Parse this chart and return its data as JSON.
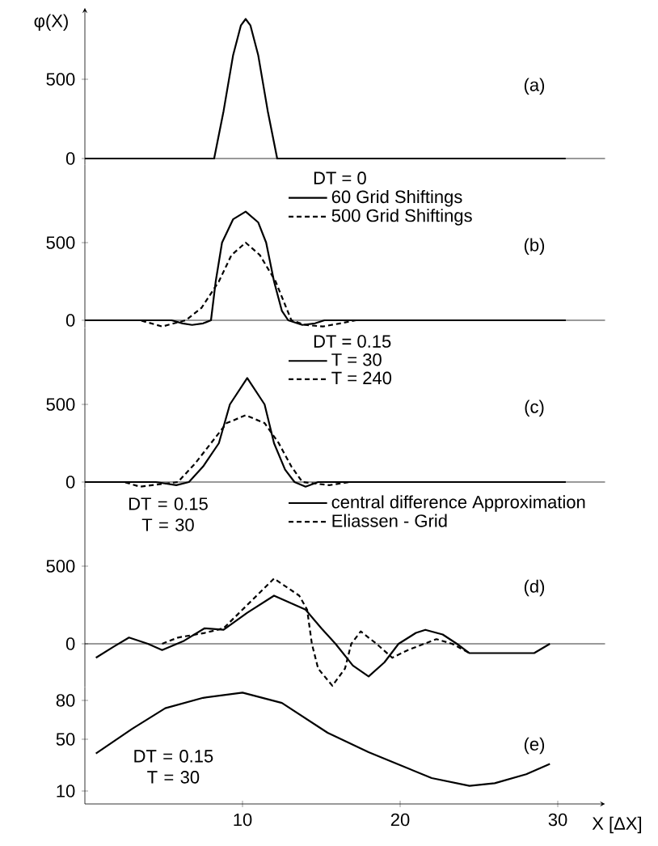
{
  "chart_data": [
    {
      "type": "line",
      "title": "(a)",
      "ylabel": "φ(X)",
      "xlim": [
        0,
        33
      ],
      "ylim": [
        -40,
        950
      ],
      "yticks": [
        0,
        500
      ],
      "tick_labels": "y",
      "series": [
        {
          "color": "#000000",
          "line_style": "solid",
          "x": [
            0,
            8.2,
            8.8,
            9.4,
            9.9,
            10.2,
            10.5,
            11,
            11.6,
            12.2,
            30.5
          ],
          "values": [
            0,
            0,
            300,
            650,
            840,
            880,
            840,
            650,
            300,
            0,
            0
          ]
        }
      ]
    },
    {
      "type": "line",
      "title": "(b)",
      "legend_title": "DT = 0",
      "legend": "top",
      "xlim": [
        0,
        33
      ],
      "ylim": [
        -50,
        1000
      ],
      "yticks": [
        0,
        500
      ],
      "tick_labels": "y",
      "series": [
        {
          "name": "60 Grid Shiftings",
          "color": "#000000",
          "line_style": "solid",
          "x": [
            0,
            5.5,
            6.2,
            6.8,
            7.5,
            8,
            8.3,
            8.7,
            9.4,
            10.2,
            11,
            11.5,
            12,
            12.5,
            12.9,
            13.8,
            14.6,
            15.2,
            30.5
          ],
          "values": [
            0,
            0,
            -20,
            -30,
            -20,
            0,
            250,
            500,
            650,
            700,
            630,
            500,
            250,
            60,
            0,
            -30,
            -20,
            0,
            0
          ]
        },
        {
          "name": "500 Grid Shiftings",
          "color": "#000000",
          "line_style": "dashed",
          "x": [
            0,
            3.5,
            4.9,
            6.4,
            7.4,
            8.5,
            9.3,
            10.2,
            11.1,
            12.1,
            13.1,
            14,
            15.1,
            16.2,
            17.2,
            30.5
          ],
          "values": [
            0,
            0,
            -40,
            0,
            80,
            250,
            420,
            500,
            420,
            250,
            0,
            -30,
            -40,
            -20,
            0,
            0
          ]
        }
      ]
    },
    {
      "type": "line",
      "title": "(c)",
      "legend_title": "DT = 0.15",
      "legend": "top",
      "xlim": [
        0,
        33
      ],
      "ylim": [
        -40,
        990
      ],
      "yticks": [
        0,
        500
      ],
      "tick_labels": "y",
      "series": [
        {
          "name": "T = 30",
          "color": "#000000",
          "line_style": "solid",
          "x": [
            0,
            4.5,
            5.8,
            6.6,
            7.5,
            8.5,
            9.2,
            10.3,
            11.4,
            12,
            12.7,
            13.3,
            14,
            14.8,
            30.5
          ],
          "values": [
            0,
            0,
            -20,
            0,
            100,
            250,
            500,
            670,
            500,
            250,
            80,
            0,
            -30,
            0,
            0
          ]
        },
        {
          "name": "T = 240",
          "color": "#000000",
          "line_style": "dashed",
          "x": [
            0,
            2.5,
            3.5,
            5.9,
            7,
            8,
            9,
            10.2,
            11.4,
            12.3,
            13.1,
            13.8,
            15.5,
            16.8,
            30.5
          ],
          "values": [
            0,
            0,
            -30,
            0,
            120,
            250,
            380,
            430,
            380,
            250,
            100,
            0,
            -20,
            0,
            0
          ]
        }
      ]
    },
    {
      "type": "line",
      "title": "(d)",
      "legend": "top",
      "annotations": [
        "DT = 0.15 T = 30"
      ],
      "xlim": [
        0,
        33
      ],
      "ylim": [
        -280,
        1000
      ],
      "yticks": [
        0,
        500
      ],
      "tick_labels": "y",
      "series": [
        {
          "name": "central difference Approximation",
          "color": "#000000",
          "line_style": "solid",
          "x": [
            0.7,
            1.8,
            2.8,
            4,
            4.9,
            6.3,
            7.6,
            8.8,
            10.3,
            12,
            14,
            15,
            15.9,
            17,
            18,
            19,
            19.9,
            21,
            21.6,
            22.7,
            23.6,
            24.4,
            26.5,
            28.5,
            29.5
          ],
          "values": [
            -90,
            -20,
            40,
            0,
            -40,
            20,
            100,
            90,
            200,
            310,
            220,
            100,
            0,
            -140,
            -210,
            -120,
            0,
            70,
            90,
            60,
            0,
            -60,
            -60,
            -60,
            0
          ]
        },
        {
          "name": "Eliassen - Grid",
          "color": "#000000",
          "line_style": "dashed",
          "x": [
            4.9,
            5.9,
            7.6,
            8.8,
            10.3,
            12,
            13.6,
            14.1,
            14.4,
            14.8,
            15.7,
            16.5,
            16.9,
            17.5,
            18.5,
            19.5,
            20.5,
            22.3,
            23.3,
            24.4
          ],
          "values": [
            0,
            40,
            70,
            100,
            250,
            420,
            310,
            220,
            0,
            -160,
            -270,
            -160,
            0,
            80,
            0,
            -90,
            -40,
            30,
            0,
            -60
          ]
        }
      ]
    },
    {
      "type": "line",
      "title": "(e)",
      "xlabel": "X [ΔX]",
      "annotations": [
        "DT = 0.15 T = 30"
      ],
      "xlim": [
        0,
        33
      ],
      "ylim": [
        0,
        90
      ],
      "xticks": [
        10,
        20,
        30
      ],
      "yticks": [
        10,
        50,
        80
      ],
      "series": [
        {
          "color": "#000000",
          "line_style": "solid",
          "x": [
            0.7,
            3,
            5.1,
            7.5,
            10,
            12.5,
            15.4,
            18,
            20,
            22,
            24.4,
            26,
            28,
            29.5
          ],
          "values": [
            39,
            58,
            74,
            82,
            86,
            78,
            55,
            40,
            30,
            20,
            14,
            16,
            23,
            31
          ]
        }
      ]
    }
  ]
}
